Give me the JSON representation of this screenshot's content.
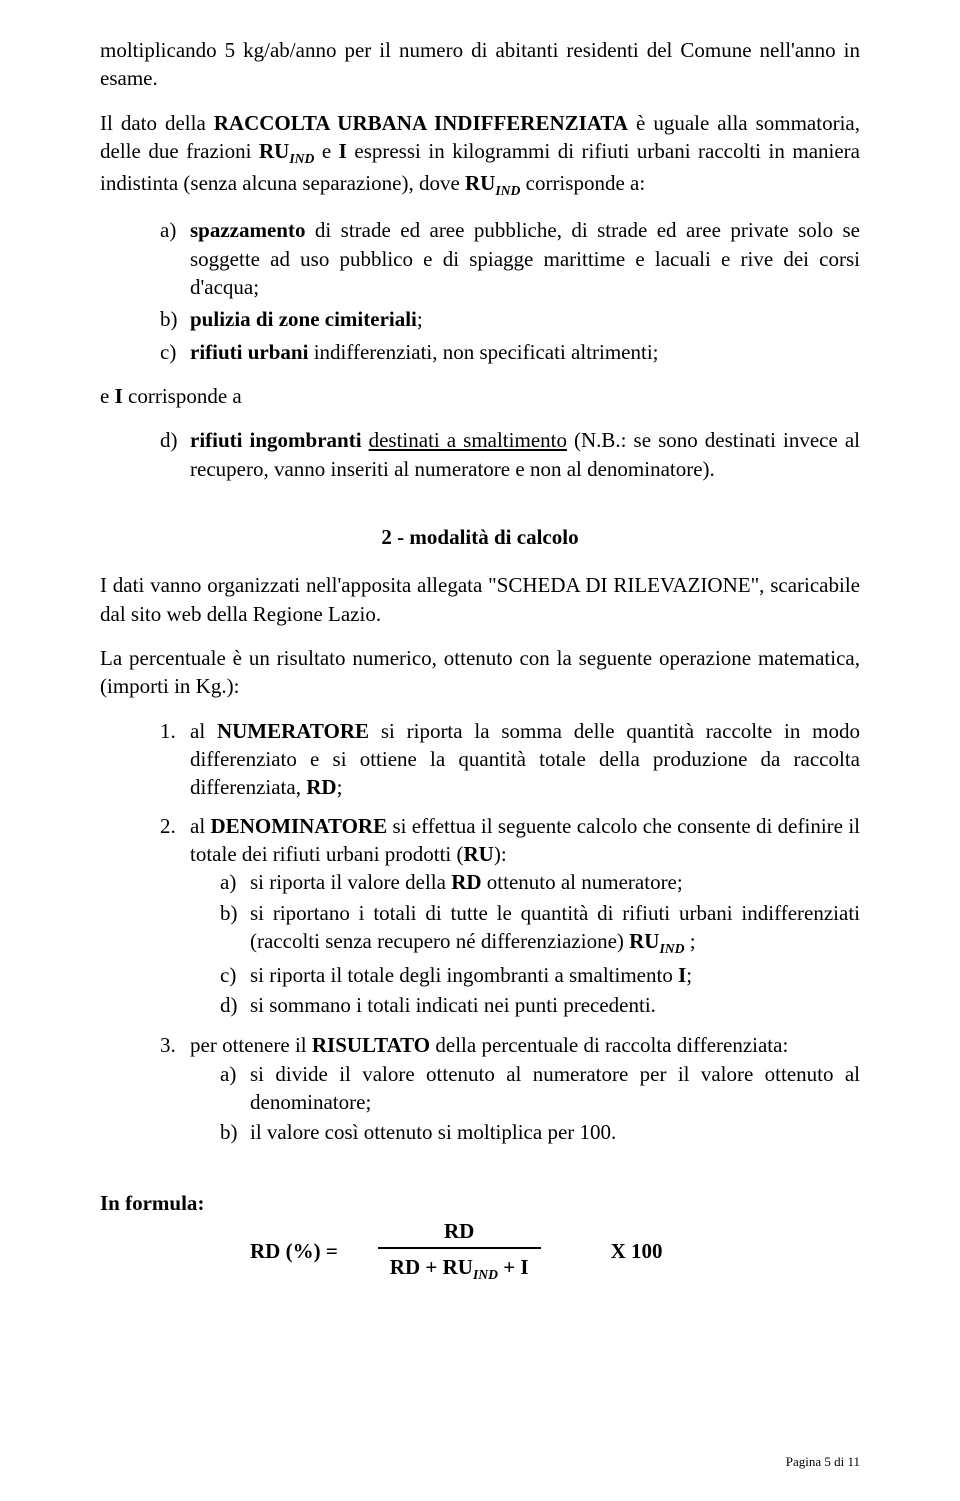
{
  "p1": "moltiplicando 5 kg/ab/anno per il numero di abitanti residenti del Comune nell'anno in esame.",
  "p2_part1": "Il dato della ",
  "p2_bold1": "RACCOLTA URBANA INDIFFERENZIATA",
  "p2_part2": " è uguale alla sommatoria, delle due frazioni ",
  "p2_ru": "RU",
  "p2_ind": "IND",
  "p2_part3": " e ",
  "p2_I": "I",
  "p2_part4": " espressi in kilogrammi di rifiuti urbani raccolti in maniera indistinta (senza alcuna separazione), dove ",
  "p2_part5": " corrisponde a:",
  "a_mk": "a)",
  "a_bold": "spazzamento",
  "a_tx": " di strade ed aree pubbliche, di strade ed aree private solo se soggette ad uso pubblico e di spiagge marittime e lacuali e rive dei corsi d'acqua;",
  "b_mk": "b)",
  "b_bold": "pulizia di zone cimiteriali",
  "b_tx": ";",
  "c_mk": "c)",
  "c_bold": "rifiuti urbani",
  "c_tx": " indifferenziati, non specificati altrimenti;",
  "p3_part1": "e ",
  "p3_I": "I",
  "p3_part2": " corrisponde a",
  "d_mk": "d)",
  "d_bold": "rifiuti ingombranti",
  "d_tx1": " ",
  "d_under": "destinati a smaltimento",
  "d_tx2": " (N.B.: se sono destinati invece al recupero, vanno inseriti al numeratore e non al denominatore).",
  "h2": "2 - modalità di calcolo",
  "p4": "I dati vanno organizzati nell'apposita allegata \"SCHEDA DI RILEVAZIONE\", scaricabile dal sito web della Regione Lazio.",
  "p5": "La percentuale è un risultato numerico, ottenuto con la seguente operazione matematica, (importi in Kg.):",
  "n1_mk": "1.",
  "n1_part1": "al ",
  "n1_bold": "NUMERATORE",
  "n1_part2": " si riporta la somma delle quantità raccolte in modo differenziato e si ottiene la quantità totale della produzione da raccolta differenziata, ",
  "n1_rd": "RD",
  "n1_part3": ";",
  "n2_mk": "2.",
  "n2_part1": "al ",
  "n2_bold": "DENOMINATORE",
  "n2_part2": " si effettua il seguente calcolo che consente di definire il totale dei rifiuti urbani prodotti (",
  "n2_ru": "RU",
  "n2_part3": "):",
  "n2a_mk": "a)",
  "n2a_part1": "si riporta il valore della ",
  "n2a_rd": "RD",
  "n2a_part2": " ottenuto al numeratore;",
  "n2b_mk": "b)",
  "n2b_part1": "si riportano i totali di tutte le quantità di rifiuti urbani indifferenziati (raccolti senza recupero né differenziazione) ",
  "n2b_ru": "RU",
  "n2b_ind": "IND",
  "n2b_part2": " ;",
  "n2c_mk": "c)",
  "n2c_part1": "si riporta il totale degli ingombranti a smaltimento ",
  "n2c_I": "I",
  "n2c_part2": ";",
  "n2d_mk": "d)",
  "n2d_tx": "si sommano i totali indicati nei punti precedenti.",
  "n3_mk": "3.",
  "n3_part1": "per ottenere il ",
  "n3_bold": "RISULTATO",
  "n3_part2": " della percentuale di raccolta differenziata:",
  "n3a_mk": "a)",
  "n3a_tx": "si divide il valore ottenuto al numeratore per il valore ottenuto al denominatore;",
  "n3b_mk": "b)",
  "n3b_tx": "il valore così ottenuto si moltiplica per 100.",
  "formula_label": "In formula",
  "formula_lhs": "RD (%)  =",
  "formula_num": "RD",
  "formula_den_1": "RD + RU",
  "formula_den_ind": "IND",
  "formula_den_2": " +  I",
  "formula_x": "X 100",
  "footer": "Pagina 5 di 11"
}
